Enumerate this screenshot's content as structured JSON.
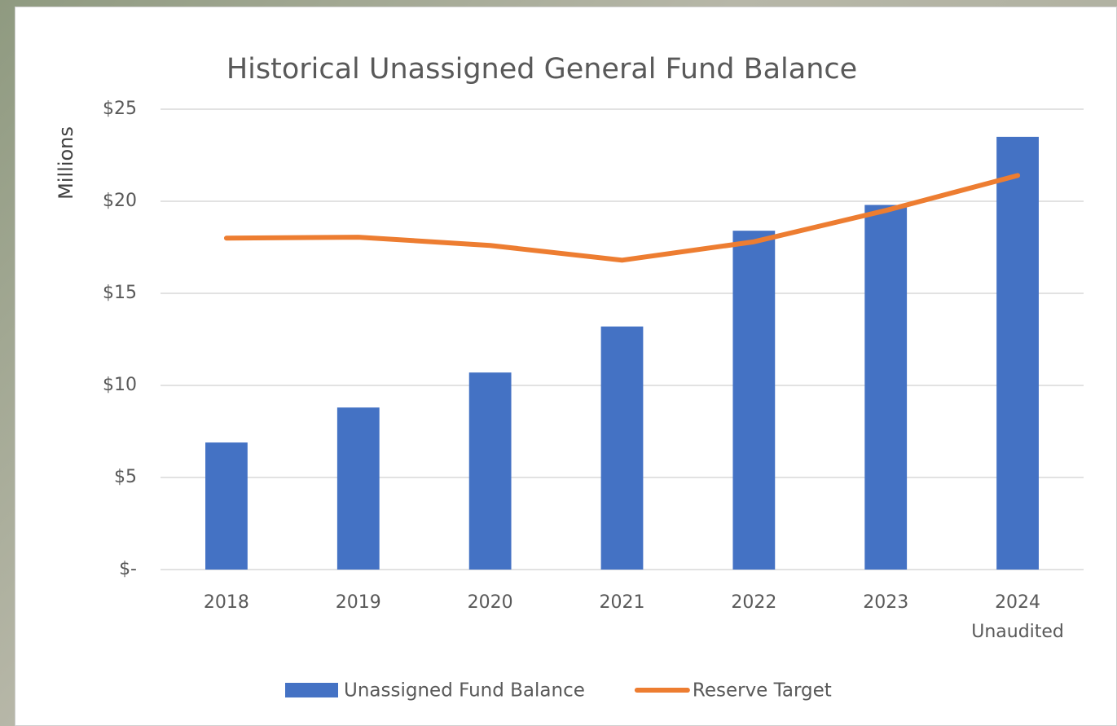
{
  "chart_data": {
    "type": "bar_line",
    "title": "Historical Unassigned General Fund Balance",
    "y_label": "Millions",
    "categories": [
      "2018",
      "2019",
      "2020",
      "2021",
      "2022",
      "2023",
      "2024\nUnaudited"
    ],
    "series": [
      {
        "name": "Unassigned Fund Balance",
        "type": "bar",
        "color": "#4472c4",
        "values": [
          6.9,
          8.8,
          10.7,
          13.2,
          18.4,
          19.8,
          23.5
        ]
      },
      {
        "name": "Reserve Target",
        "type": "line",
        "color": "#ed7d31",
        "values": [
          18.0,
          18.05,
          17.6,
          16.8,
          17.8,
          19.5,
          21.4
        ]
      }
    ],
    "ylim": [
      0,
      25
    ],
    "yticks": [
      {
        "value": 0,
        "label": "$-"
      },
      {
        "value": 5,
        "label": "$5"
      },
      {
        "value": 10,
        "label": "$10"
      },
      {
        "value": 15,
        "label": "$15"
      },
      {
        "value": 20,
        "label": "$20"
      },
      {
        "value": 25,
        "label": "$25"
      }
    ],
    "grid": true,
    "legend": "bottom"
  }
}
